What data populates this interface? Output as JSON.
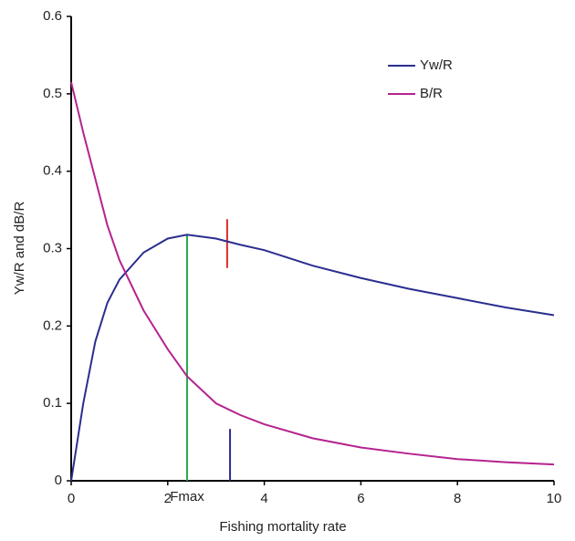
{
  "chart_data": {
    "type": "line",
    "x_label": "Fishing mortality rate",
    "y_label": "Yw/R and dB/R",
    "x": [
      0,
      0.25,
      0.5,
      0.75,
      1,
      1.5,
      2,
      2.4,
      3,
      3.5,
      4,
      5,
      6,
      7,
      8,
      9,
      10
    ],
    "series": [
      {
        "name": "Yw/R",
        "color": "#2b2e8f",
        "values": [
          0,
          0.1,
          0.18,
          0.23,
          0.26,
          0.295,
          0.313,
          0.318,
          0.313,
          0.305,
          0.298,
          0.278,
          0.262,
          0.248,
          0.236,
          0.224,
          0.214
        ]
      },
      {
        "name": "B/R",
        "color": "#b5238f",
        "values": [
          0.515,
          0.45,
          0.39,
          0.33,
          0.285,
          0.22,
          0.17,
          0.135,
          0.1,
          0.085,
          0.073,
          0.055,
          0.043,
          0.035,
          0.028,
          0.024,
          0.021
        ]
      }
    ],
    "markers": [
      {
        "x": 2.4,
        "y": [
          0,
          0.318
        ],
        "color": "#2aa84a"
      },
      {
        "x": 3.23,
        "y": [
          0.275,
          0.338
        ],
        "color": "#d62a2a"
      },
      {
        "x": 3.29,
        "y": [
          0,
          0.067
        ],
        "color": "#2b2e8f"
      }
    ],
    "annotation": "Fmax",
    "xlim": [
      0,
      10
    ],
    "xticks": [
      0,
      2,
      4,
      6,
      8,
      10
    ],
    "ylim": [
      0,
      0.6
    ],
    "yticks": [
      0,
      0.1,
      0.2,
      0.3,
      0.4,
      0.5,
      0.6
    ],
    "legend": "upper right"
  }
}
